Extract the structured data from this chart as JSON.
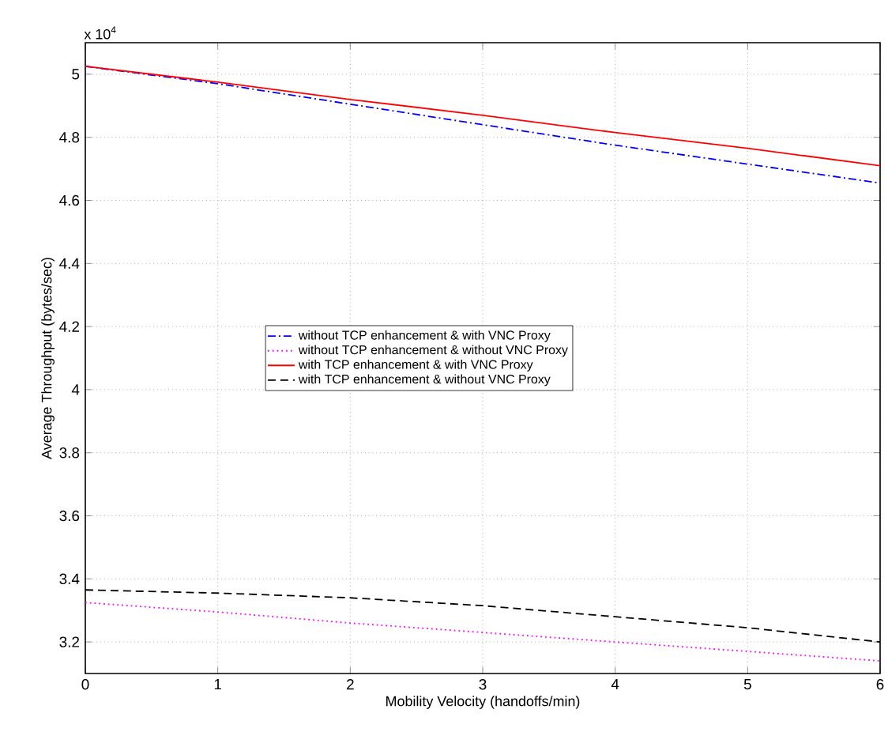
{
  "chart_data": {
    "type": "line",
    "xlabel": "Mobility Velocity (handoffs/min)",
    "ylabel": "Average Throughput (bytes/sec)",
    "annotations": [
      "x 10$^{4}$"
    ],
    "x": [
      0,
      1,
      2,
      3,
      4,
      5,
      6
    ],
    "series": [
      {
        "name": "without TCP enhancement & with VNC Proxy",
        "color": "#0000ff",
        "line_style": "dashdot",
        "values": [
          5.025,
          4.97,
          4.905,
          4.84,
          4.775,
          4.715,
          4.655
        ]
      },
      {
        "name": "without TCP enhancement & without VNC Proxy",
        "color": "#ff00ff",
        "line_style": "dotted",
        "values": [
          3.325,
          3.295,
          3.26,
          3.23,
          3.2,
          3.17,
          3.14
        ]
      },
      {
        "name": "with TCP enhancement & with VNC Proxy",
        "color": "#ff0000",
        "line_style": "solid",
        "values": [
          5.025,
          4.975,
          4.92,
          4.87,
          4.815,
          4.765,
          4.71
        ]
      },
      {
        "name": "with TCP enhancement & without VNC Proxy",
        "color": "#000000",
        "line_style": "dashed",
        "values": [
          3.365,
          3.355,
          3.34,
          3.315,
          3.28,
          3.245,
          3.2
        ]
      }
    ],
    "xlim": [
      0,
      6
    ],
    "ylim": [
      3.1,
      5.1
    ],
    "xticks": [
      0,
      1,
      2,
      3,
      4,
      5,
      6
    ],
    "yticks": [
      3.2,
      3.4,
      3.6,
      3.8,
      4,
      4.2,
      4.4,
      4.6,
      4.8,
      5
    ],
    "grid": true,
    "legend": "center"
  }
}
